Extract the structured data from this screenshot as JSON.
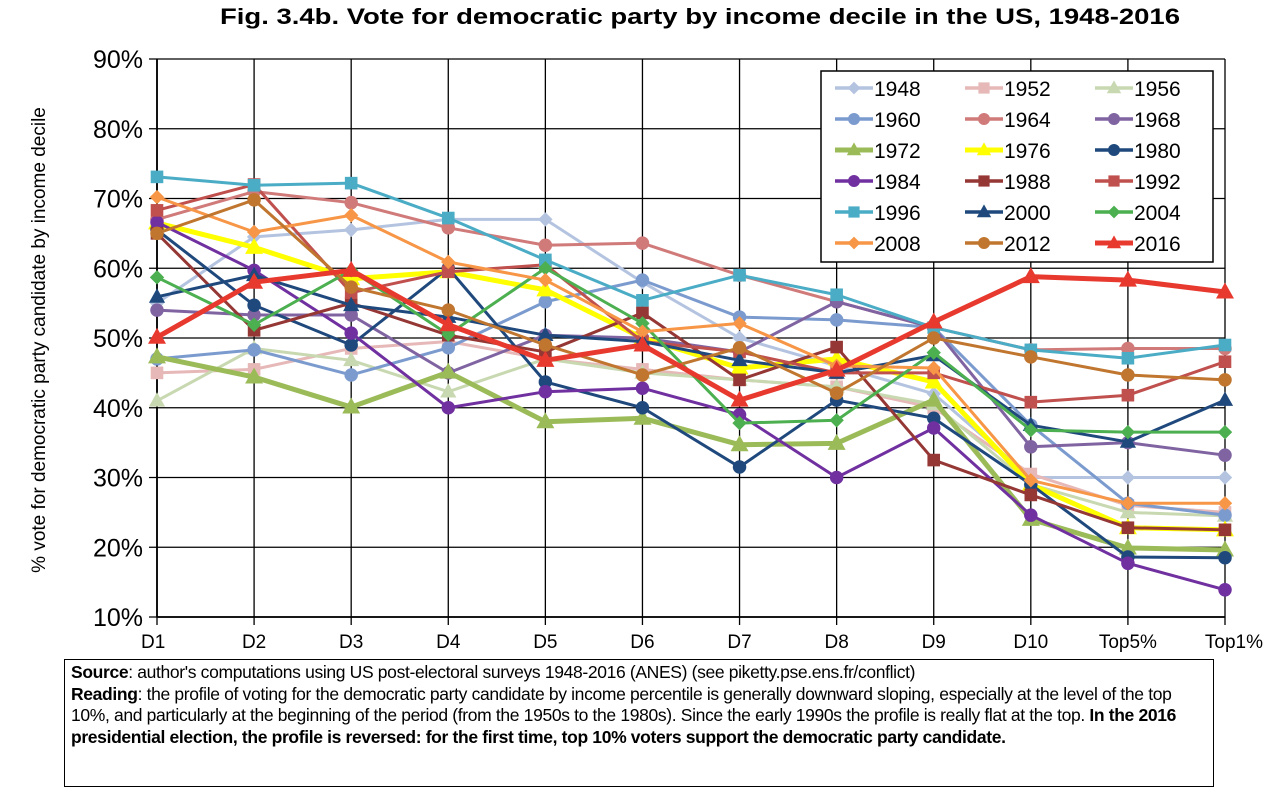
{
  "chart_data": {
    "type": "line",
    "title": "Fig. 3.4b. Vote for democratic party by income decile in the US, 1948-2016",
    "xlabel": "",
    "ylabel": "% vote for democratic party candidate by income decile",
    "ylim": [
      10,
      90
    ],
    "yticks": [
      10,
      20,
      30,
      40,
      50,
      60,
      70,
      80,
      90
    ],
    "ytick_labels": [
      "10%",
      "20%",
      "30%",
      "40%",
      "50%",
      "60%",
      "70%",
      "80%",
      "90%"
    ],
    "grid": true,
    "legend_position": "top-right",
    "categories": [
      "D1",
      "D2",
      "D3",
      "D4",
      "D5",
      "D6",
      "D7",
      "D8",
      "D9",
      "D10",
      "Top5%",
      "Top1%"
    ],
    "series": [
      {
        "name": "1948",
        "color": "#b4c4e0",
        "marker": "diamond",
        "values": [
          55,
          64.5,
          65.5,
          67,
          67,
          58,
          50,
          46,
          42,
          30,
          30,
          30
        ]
      },
      {
        "name": "1952",
        "color": "#e6b8b7",
        "marker": "square",
        "values": [
          45,
          45.5,
          48.5,
          49.5,
          47,
          45.5,
          44,
          43,
          40,
          30.5,
          26,
          25
        ]
      },
      {
        "name": "1956",
        "color": "#c8d8b0",
        "marker": "triangle",
        "values": [
          41,
          48.5,
          46.8,
          42.3,
          47,
          45,
          44,
          43,
          40.5,
          29,
          25,
          24.5
        ]
      },
      {
        "name": "1960",
        "color": "#7b9bcf",
        "marker": "circle",
        "values": [
          47,
          48.3,
          44.7,
          48.6,
          55.2,
          58.3,
          53,
          52.6,
          51.5,
          37.5,
          26.3,
          24.6
        ]
      },
      {
        "name": "1964",
        "color": "#d07a7a",
        "marker": "circle",
        "values": [
          67,
          71,
          69.4,
          65.8,
          63.3,
          63.6,
          59,
          55.2,
          51.5,
          48.3,
          48.5,
          48.5
        ]
      },
      {
        "name": "1968",
        "color": "#8064a2",
        "marker": "circle",
        "values": [
          54,
          53.3,
          53.3,
          45,
          50.4,
          50,
          48,
          55.2,
          51.5,
          34.4,
          35,
          33.2
        ]
      },
      {
        "name": "1972",
        "color": "#9bbb59",
        "marker": "triangle",
        "values": [
          47.3,
          44.4,
          40.1,
          45.1,
          38,
          38.5,
          34.7,
          34.9,
          41.1,
          24,
          19.9,
          19.6
        ]
      },
      {
        "name": "1976",
        "color": "#ffff00",
        "marker": "triangle",
        "values": [
          66.5,
          63,
          58.5,
          59.5,
          56.9,
          50,
          45.7,
          47,
          43.7,
          29,
          22.8,
          22.5
        ]
      },
      {
        "name": "1980",
        "color": "#1f497d",
        "marker": "circle",
        "values": [
          65.5,
          54.7,
          49,
          60,
          43.7,
          40,
          31.5,
          41.1,
          38.5,
          29,
          18.6,
          18.5
        ]
      },
      {
        "name": "1984",
        "color": "#7030a0",
        "marker": "circle",
        "values": [
          66.6,
          59.7,
          50.7,
          40,
          42.3,
          42.8,
          39,
          30,
          37.1,
          24.6,
          17.7,
          13.9
        ]
      },
      {
        "name": "1988",
        "color": "#953735",
        "marker": "square",
        "values": [
          65,
          51.1,
          55,
          50.4,
          48,
          53.6,
          44,
          48.7,
          32.5,
          27.5,
          22.8,
          22.5
        ]
      },
      {
        "name": "1992",
        "color": "#c0504d",
        "marker": "square",
        "values": [
          68.3,
          72,
          56.5,
          59.5,
          60.5,
          49.5,
          48,
          45,
          45,
          40.8,
          41.8,
          46.6
        ]
      },
      {
        "name": "1996",
        "color": "#4bacc6",
        "marker": "square",
        "values": [
          73.1,
          71.9,
          72.2,
          67.2,
          61.2,
          55.4,
          59,
          56.2,
          51.5,
          48.3,
          47.1,
          49
        ]
      },
      {
        "name": "2000",
        "color": "#1f497d",
        "marker": "triangle",
        "values": [
          55.9,
          59,
          54.7,
          53,
          50.4,
          49.5,
          46.8,
          45,
          47.5,
          37.5,
          35.1,
          41.1
        ]
      },
      {
        "name": "2004",
        "color": "#4caf50",
        "marker": "diamond",
        "values": [
          58.7,
          51.9,
          59.7,
          50.5,
          60,
          52.1,
          37.8,
          38.2,
          47.9,
          36.8,
          36.5,
          36.5
        ]
      },
      {
        "name": "2008",
        "color": "#f79646",
        "marker": "diamond",
        "values": [
          70.2,
          65.2,
          67.6,
          60.9,
          58.3,
          50.9,
          52.1,
          46,
          45.7,
          29.6,
          26.3,
          26.3
        ]
      },
      {
        "name": "2012",
        "color": "#c0762f",
        "marker": "circle",
        "values": [
          65,
          69.8,
          57.3,
          54,
          49,
          44.7,
          48.6,
          42.1,
          50,
          47.3,
          44.7,
          44
        ]
      },
      {
        "name": "2016",
        "color": "#e8392f",
        "marker": "triangle",
        "values": [
          50.1,
          58,
          59.7,
          51.9,
          46.8,
          49,
          41.1,
          45.4,
          52.3,
          58.8,
          58.3,
          56.6
        ]
      }
    ]
  },
  "caption": {
    "source_label": "Source",
    "source_text": ": author's computations using US post-electoral surveys 1948-2016 (ANES) (see piketty.pse.ens.fr/conflict)",
    "reading_label": "Reading",
    "reading_text": ": the profile of voting for the democratic party candidate by income percentile is generally downward sloping, especially at the level of the top 10%, and particularly at the beginning of the period (from the 1950s to the 1980s). Since the early 1990s the profile is really flat at the top. ",
    "reading_bold": "In the 2016 presidential election, the profile is reversed: for the first time, top 10% voters support the democratic party candidate."
  }
}
